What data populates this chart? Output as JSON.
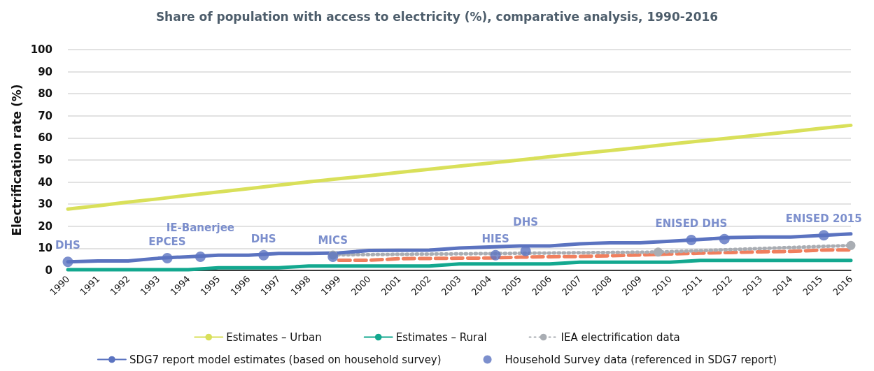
{
  "chart_data": {
    "type": "line",
    "title": "Share of population with access to electricity (%), comparative analysis, 1990-2016",
    "ylabel": "Electrification rate (%)",
    "xlim": [
      1990,
      2016
    ],
    "xticks": [
      1990,
      1991,
      1992,
      1993,
      1994,
      1995,
      1996,
      1997,
      1998,
      1999,
      2000,
      2001,
      2002,
      2003,
      2004,
      2005,
      2006,
      2007,
      2008,
      2009,
      2010,
      2011,
      2012,
      2013,
      2014,
      2015,
      2016
    ],
    "ylim": [
      0,
      100
    ],
    "yticks": [
      0,
      10,
      20,
      30,
      40,
      50,
      60,
      70,
      80,
      90,
      100
    ],
    "grid": "y",
    "legend": "bottom",
    "series": [
      {
        "color": "#f07f5e",
        "line_style": "dashed",
        "marker": "none",
        "x": [
          1999,
          2000,
          2001,
          2002,
          2003,
          2004,
          2005,
          2006,
          2007,
          2008,
          2009,
          2010,
          2011,
          2012,
          2013,
          2014,
          2015,
          2016
        ],
        "values": [
          4.6,
          4.6,
          5.3,
          5.4,
          5.5,
          5.6,
          6.0,
          6.2,
          6.3,
          6.6,
          7.0,
          7.4,
          7.8,
          8.1,
          8.4,
          8.6,
          9.2,
          9.3
        ]
      },
      {
        "name": "Estimates – Urban",
        "color": "#d9e05a",
        "line_style": "solid",
        "marker": "none",
        "x": [
          1990,
          1991,
          1992,
          1993,
          1994,
          1995,
          1996,
          1997,
          1998,
          1999,
          2000,
          2001,
          2002,
          2003,
          2004,
          2005,
          2006,
          2007,
          2008,
          2009,
          2010,
          2011,
          2012,
          2013,
          2014,
          2015,
          2016
        ],
        "values": [
          27.8,
          29.3,
          30.9,
          32.4,
          34.0,
          35.5,
          37.0,
          38.6,
          40.1,
          41.5,
          42.9,
          44.4,
          45.8,
          47.2,
          48.6,
          50.0,
          51.5,
          52.9,
          54.3,
          55.7,
          57.2,
          58.6,
          60.0,
          61.4,
          62.8,
          64.3,
          65.7
        ]
      },
      {
        "name": "Estimates – Rural",
        "color": "#13a88f",
        "line_style": "solid",
        "marker": "none",
        "x": [
          1990,
          1991,
          1992,
          1993,
          1994,
          1995,
          1996,
          1997,
          1998,
          1999,
          2000,
          2001,
          2002,
          2003,
          2004,
          2005,
          2006,
          2007,
          2008,
          2009,
          2010,
          2011,
          2012,
          2013,
          2014,
          2015,
          2016
        ],
        "values": [
          0.3,
          0.3,
          0.3,
          0.3,
          0.3,
          1.2,
          1.2,
          1.2,
          2.0,
          2.0,
          2.0,
          2.0,
          2.0,
          2.9,
          2.9,
          2.9,
          2.9,
          3.7,
          3.7,
          3.7,
          3.7,
          4.5,
          4.5,
          4.5,
          4.5,
          4.5,
          4.5
        ]
      },
      {
        "name": "IEA electrification data",
        "color": "#a9adb3",
        "line_style": "dotted",
        "marker": "circle",
        "x": [
          1998.8,
          2009.6,
          2016
        ],
        "values": [
          7.0,
          8.3,
          11.3
        ]
      },
      {
        "name": "SDG7 report model estimates (based on household survey)",
        "color": "#5b73c0",
        "line_style": "solid",
        "marker": "none",
        "x": [
          1990,
          1991,
          1992,
          1993,
          1994,
          1995,
          1996,
          1997,
          1998,
          1999,
          2000,
          2001,
          2002,
          2003,
          2004,
          2005,
          2006,
          2007,
          2008,
          2009,
          2010,
          2011,
          2012,
          2013,
          2014,
          2015,
          2016
        ],
        "values": [
          3.9,
          4.3,
          4.3,
          5.5,
          6.2,
          6.9,
          6.9,
          7.7,
          7.7,
          7.9,
          9.0,
          9.1,
          9.2,
          10.1,
          10.6,
          11.1,
          11.1,
          12.0,
          12.5,
          12.5,
          13.2,
          14.0,
          14.9,
          15.1,
          15.1,
          15.8,
          16.5
        ]
      },
      {
        "name": "Household Survey data (referenced in SDG7 report)",
        "type": "scatter",
        "color": "#5b73c0",
        "marker": "circle",
        "x": [
          1990,
          1993.3,
          1994.4,
          1996.5,
          1998.8,
          2004.2,
          2005.2,
          2010.7,
          2011.8,
          2015.1
        ],
        "values": [
          3.9,
          5.5,
          6.2,
          6.9,
          6.2,
          6.9,
          8.8,
          13.8,
          14.2,
          15.9
        ]
      }
    ],
    "annotations": [
      {
        "text": "DHS",
        "x": 1990,
        "y": 3.9
      },
      {
        "text": "EPCES",
        "x": 1993.3,
        "y": 5.5
      },
      {
        "text": "IE-Banerjee",
        "x": 1994.4,
        "y": 6.2
      },
      {
        "text": "DHS",
        "x": 1996.5,
        "y": 6.9
      },
      {
        "text": "MICS",
        "x": 1998.8,
        "y": 6.2
      },
      {
        "text": "HIES",
        "x": 2004.2,
        "y": 6.9
      },
      {
        "text": "DHS",
        "x": 2005.2,
        "y": 8.8
      },
      {
        "text": "ENISED DHS",
        "x": 2010.7,
        "y": 13.8
      },
      {
        "text": "ENISED 2015",
        "x": 2015.1,
        "y": 15.9
      }
    ]
  }
}
